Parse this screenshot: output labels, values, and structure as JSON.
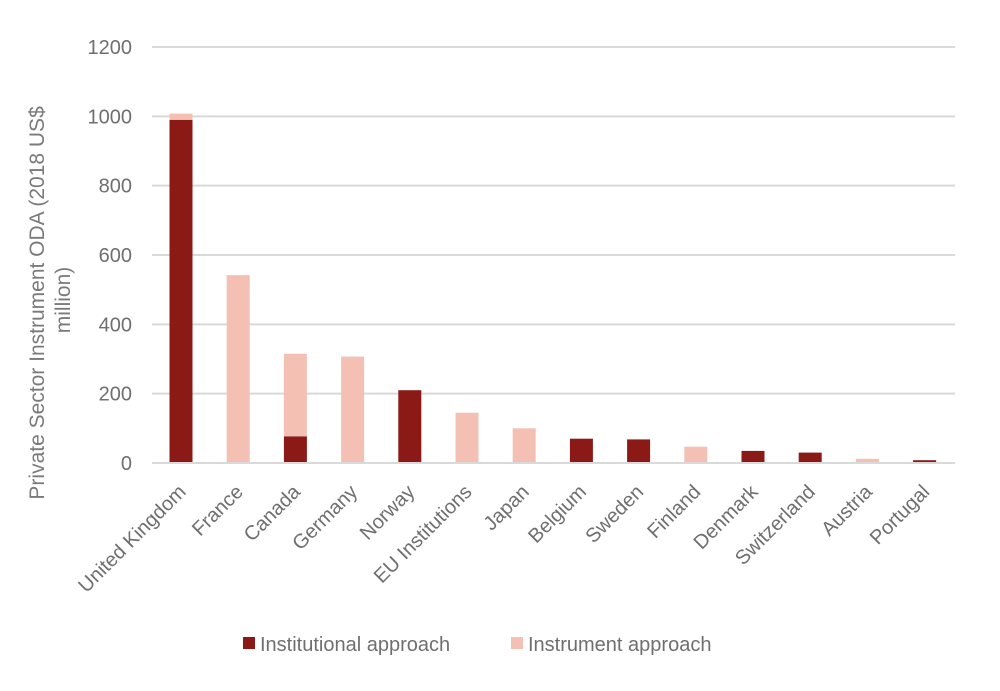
{
  "chart_data": {
    "type": "bar",
    "stacked": true,
    "title": "",
    "xlabel": "",
    "ylabel_lines": [
      "Private Sector Instrument ODA (2018 US$",
      "million)"
    ],
    "ylim": [
      0,
      1200
    ],
    "yticks": [
      0,
      200,
      400,
      600,
      800,
      1000,
      1200
    ],
    "grid": true,
    "legend_position": "bottom",
    "categories": [
      "United Kingdom",
      "France",
      "Canada",
      "Germany",
      "Norway",
      "EU Institutions",
      "Japan",
      "Belgium",
      "Sweden",
      "Finland",
      "Denmark",
      "Switzerland",
      "Austria",
      "Portugal"
    ],
    "series": [
      {
        "name": "Institutional approach",
        "color": "#8b1a17",
        "values": [
          990,
          0,
          77,
          0,
          210,
          0,
          0,
          70,
          68,
          0,
          35,
          30,
          0,
          8
        ]
      },
      {
        "name": "Instrument approach",
        "color": "#f4c0b4",
        "values": [
          18,
          542,
          238,
          307,
          0,
          145,
          100,
          0,
          0,
          47,
          0,
          0,
          12,
          0
        ]
      }
    ]
  }
}
